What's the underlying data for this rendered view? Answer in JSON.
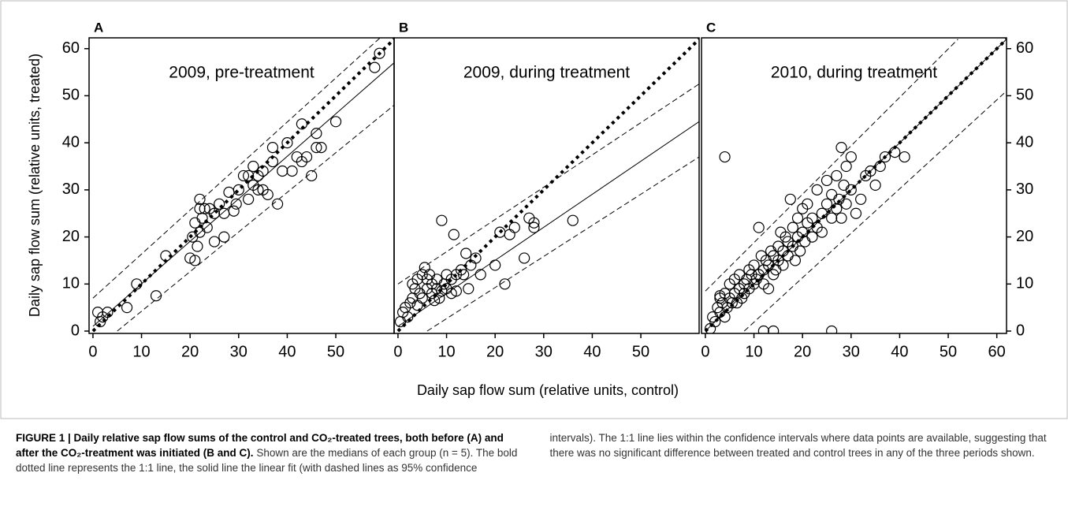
{
  "figure": {
    "ylabel": "Daily sap flow sum (relative units, treated)",
    "xlabel": "Daily sap flow sum (relative units, control)",
    "caption_bold": "FIGURE 1 | Daily relative sap flow sums of the control and CO₂-treated trees, both before (A) and after the CO₂-treatment was initiated (B and C).",
    "caption_text": "Shown are the medians of each group (n = 5). The bold dotted line represents the 1:1 line, the solid line the linear fit (with dashed lines as 95% confidence intervals). The 1:1 line lies within the confidence intervals where data points are available, suggesting that there was no significant difference between treated and control trees in any of the three periods shown."
  },
  "chart_data": [
    {
      "type": "scatter",
      "panel": "A",
      "title": "2009, pre-treatment",
      "xlim": [
        -0.8,
        62
      ],
      "ylim": [
        -0.5,
        62.3
      ],
      "xticks": [
        0,
        10,
        20,
        30,
        40,
        50
      ],
      "yticks": [
        0,
        10,
        20,
        30,
        40,
        50,
        60
      ],
      "yaxis_side": "left",
      "x": [
        1,
        1.5,
        2,
        3,
        7,
        9,
        13,
        15,
        20,
        20.5,
        21,
        21,
        21.5,
        22,
        22,
        22,
        22.5,
        23,
        23.5,
        24,
        25,
        25,
        26,
        27,
        27,
        28,
        29,
        29.5,
        30,
        31,
        32,
        32,
        33,
        33,
        34,
        34,
        35,
        35,
        36,
        37,
        37,
        38,
        39,
        40,
        41,
        42,
        43,
        43,
        44,
        45,
        46,
        46,
        47,
        50,
        58,
        59
      ],
      "y": [
        4,
        2,
        3,
        4,
        5,
        10,
        7.5,
        16,
        15.5,
        20,
        23,
        15,
        18,
        21,
        26,
        28,
        24,
        26,
        22,
        26,
        25,
        19,
        27,
        25,
        20,
        29.5,
        25.5,
        27,
        30,
        33,
        33,
        28,
        31,
        35,
        30,
        33,
        30,
        34,
        29,
        36,
        39,
        27,
        34,
        40,
        34,
        37,
        44,
        36,
        37,
        33,
        39,
        42,
        39,
        44.5,
        56,
        59
      ],
      "lines": [
        {
          "style": "dotted-bold",
          "x": [
            0,
            62
          ],
          "y": [
            0,
            62
          ]
        },
        {
          "style": "solid",
          "x": [
            0,
            62
          ],
          "y": [
            1,
            57
          ]
        },
        {
          "style": "dashed",
          "x": [
            0,
            62
          ],
          "y": [
            7,
            65
          ]
        },
        {
          "style": "dashed",
          "x": [
            5,
            62
          ],
          "y": [
            0,
            48
          ]
        }
      ]
    },
    {
      "type": "scatter",
      "panel": "B",
      "title": "2009, during treatment",
      "xlim": [
        -0.8,
        62
      ],
      "ylim": [
        -0.5,
        62.3
      ],
      "xticks": [
        0,
        10,
        20,
        30,
        40,
        50
      ],
      "x": [
        0.5,
        1,
        1.5,
        2,
        2.5,
        3,
        3,
        3.5,
        4,
        4,
        4.5,
        5,
        5,
        5.5,
        6,
        6,
        6.5,
        7,
        7,
        7.5,
        8,
        8,
        8.5,
        9,
        9,
        9.5,
        10,
        10,
        11,
        11,
        12,
        12,
        13,
        13.5,
        14,
        14.5,
        15,
        16,
        17,
        20,
        21,
        22,
        23,
        24,
        26,
        27,
        28,
        28,
        36,
        11.5
      ],
      "y": [
        2,
        4,
        5,
        3,
        6,
        7,
        10,
        9,
        11,
        5.5,
        8,
        12,
        7,
        13.5,
        9,
        11,
        12,
        8,
        10,
        6.5,
        9,
        11,
        7,
        8.5,
        23.5,
        10,
        9,
        12,
        8,
        11,
        8.5,
        12,
        13,
        12,
        16.5,
        9,
        14,
        15.5,
        12,
        14,
        21,
        10,
        20.5,
        22,
        15.5,
        24,
        23,
        22,
        23.5,
        20.5
      ],
      "lines": [
        {
          "style": "dotted-bold",
          "x": [
            0,
            62
          ],
          "y": [
            0,
            62
          ]
        },
        {
          "style": "solid",
          "x": [
            0,
            62
          ],
          "y": [
            1,
            44.5
          ]
        },
        {
          "style": "dashed",
          "x": [
            0,
            62
          ],
          "y": [
            10,
            52.5
          ]
        },
        {
          "style": "dashed",
          "x": [
            6,
            62
          ],
          "y": [
            0,
            37
          ]
        }
      ]
    },
    {
      "type": "scatter",
      "panel": "C",
      "title": "2010, during treatment",
      "xlim": [
        -0.8,
        62
      ],
      "ylim": [
        -0.5,
        62.3
      ],
      "xticks": [
        0,
        10,
        20,
        30,
        40,
        50,
        60
      ],
      "yticks": [
        0,
        10,
        20,
        30,
        40,
        50,
        60
      ],
      "yaxis_side": "right",
      "x": [
        1,
        1.5,
        2,
        2.5,
        3,
        3,
        3.5,
        4,
        4,
        4.5,
        5,
        5,
        5.5,
        6,
        6,
        6.5,
        7,
        7,
        7.5,
        8,
        8,
        8.5,
        9,
        9,
        9.5,
        10,
        10,
        10.5,
        11,
        11,
        11.5,
        12,
        12,
        12.5,
        13,
        13,
        13.5,
        14,
        14,
        14.5,
        15,
        15,
        15.5,
        16,
        16,
        16.5,
        17,
        17,
        17.5,
        18,
        18,
        18.5,
        19,
        19,
        19.5,
        20,
        20,
        20.5,
        21,
        21,
        22,
        22,
        23,
        23,
        24,
        24,
        25,
        25,
        26,
        26,
        27,
        27,
        27.5,
        28,
        28,
        28.5,
        29,
        29,
        30,
        30,
        31,
        32,
        33,
        34,
        35,
        36,
        37,
        39,
        41,
        4,
        12,
        14,
        26,
        3
      ],
      "y": [
        0.5,
        3,
        2,
        5,
        4,
        7,
        6,
        3,
        8,
        5,
        7,
        10,
        6,
        8,
        11,
        6,
        9,
        12,
        7,
        10,
        8,
        11,
        13,
        9,
        12,
        10,
        14,
        11,
        22,
        12,
        16,
        13,
        10,
        15,
        9,
        14,
        17,
        12,
        16,
        13,
        18,
        15,
        21,
        14,
        17,
        20,
        16,
        19,
        28,
        18,
        22,
        15,
        20,
        24,
        17,
        26,
        21,
        19,
        23,
        27,
        20,
        24,
        22,
        30,
        25,
        21,
        27,
        32,
        24,
        29,
        26,
        33,
        28,
        39,
        24,
        31,
        35,
        27,
        30,
        37,
        25,
        28,
        33,
        34,
        31,
        35,
        37,
        38,
        37,
        37,
        0,
        0,
        0,
        7.5
      ],
      "lines": [
        {
          "style": "dotted-bold",
          "x": [
            0,
            62
          ],
          "y": [
            0,
            62
          ]
        },
        {
          "style": "solid",
          "x": [
            0,
            62
          ],
          "y": [
            0,
            62
          ]
        },
        {
          "style": "dashed",
          "x": [
            0,
            52
          ],
          "y": [
            8.5,
            62
          ]
        },
        {
          "style": "dashed",
          "x": [
            8,
            62
          ],
          "y": [
            0,
            51
          ]
        }
      ]
    }
  ]
}
